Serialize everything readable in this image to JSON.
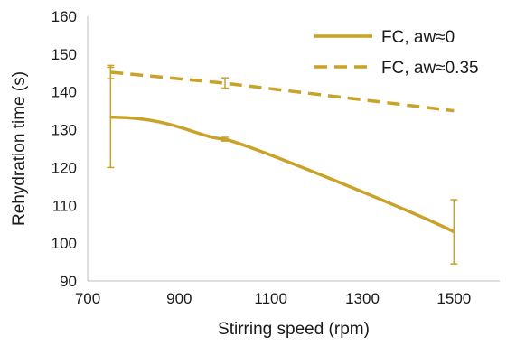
{
  "chart_data": {
    "type": "line",
    "xlabel": "Stirring speed (rpm)",
    "ylabel": "Rehydration time (s)",
    "xlim": [
      700,
      1600
    ],
    "ylim": [
      90,
      160
    ],
    "x_ticks": [
      700,
      900,
      1100,
      1300,
      1500
    ],
    "y_ticks": [
      90,
      100,
      110,
      120,
      130,
      140,
      150,
      160
    ],
    "grid": false,
    "legend_position": "top-right",
    "line_color": "#C9A227",
    "series": [
      {
        "name": "FC, aw≈0",
        "style": "solid",
        "points": [
          {
            "x": 750,
            "y": 133.3,
            "err_low": 120.0,
            "err_high": 146.5
          },
          {
            "x": 1000,
            "y": 127.5,
            "err_low": 127.0,
            "err_high": 128.0
          },
          {
            "x": 1500,
            "y": 103.0,
            "err_low": 94.5,
            "err_high": 111.5
          }
        ]
      },
      {
        "name": "FC, aw≈0.35",
        "style": "dashed",
        "points": [
          {
            "x": 750,
            "y": 145.2,
            "err_low": 143.5,
            "err_high": 147.0
          },
          {
            "x": 1000,
            "y": 142.3,
            "err_low": 141.0,
            "err_high": 143.7
          },
          {
            "x": 1500,
            "y": 135.0,
            "err_low": null,
            "err_high": null
          }
        ]
      }
    ]
  }
}
